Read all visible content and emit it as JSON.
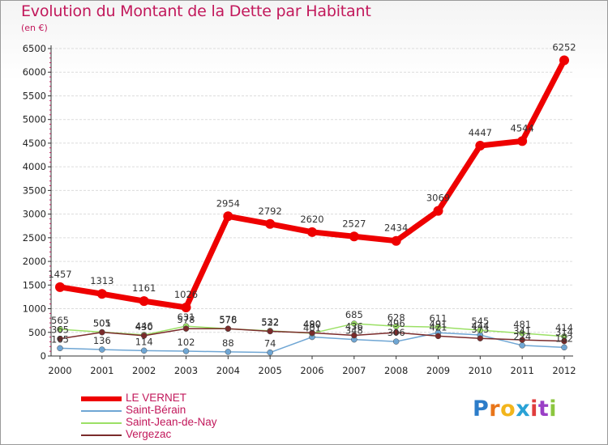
{
  "title": "Evolution du Montant de la Dette par Habitant",
  "unit_label": "(en €)",
  "logo": {
    "letters": [
      "P",
      "r",
      "o",
      "x",
      "i",
      "t",
      "i"
    ],
    "colors": [
      "#2c7cc9",
      "#e8751a",
      "#f2b51c",
      "#2aa2d6",
      "#e03d3d",
      "#9a3fc6",
      "#8cc63f"
    ]
  },
  "chart_data": {
    "type": "line",
    "title": "Evolution du Montant de la Dette par Habitant",
    "xlabel": "",
    "ylabel": "(en €)",
    "ylim": [
      0,
      6500
    ],
    "yticks": [
      0,
      500,
      1000,
      1500,
      2000,
      2500,
      3000,
      3500,
      4000,
      4500,
      5000,
      5500,
      6000,
      6500
    ],
    "x": [
      "2000",
      "2001",
      "2002",
      "2003",
      "2004",
      "2005",
      "2006",
      "2007",
      "2008",
      "2009",
      "2010",
      "2011",
      "2012"
    ],
    "series": [
      {
        "name": "LE VERNET",
        "color": "#ee0000",
        "width": 7,
        "marker": 6,
        "show_labels": true,
        "values": [
          1457,
          1313,
          1161,
          1026,
          2954,
          2792,
          2620,
          2527,
          2434,
          3069,
          4447,
          4544,
          6252
        ]
      },
      {
        "name": "Saint-Bérain",
        "color": "#6fa6d4",
        "width": 1.5,
        "marker": 3.5,
        "show_labels": true,
        "values": [
          165,
          136,
          114,
          102,
          88,
          74,
          401,
          348,
          306,
          491,
          444,
          224,
          182
        ]
      },
      {
        "name": "Saint-Jean-de-Nay",
        "color": "#9be065",
        "width": 1.5,
        "marker": 3.5,
        "show_labels": true,
        "values": [
          565,
          505,
          446,
          631,
          576,
          532,
          480,
          685,
          628,
          611,
          545,
          481,
          414
        ]
      },
      {
        "name": "Vergezac",
        "color": "#7a2b2b",
        "width": 1.5,
        "marker": 3.5,
        "show_labels": true,
        "values": [
          365,
          501,
          430,
          578,
          578,
          522,
          490,
          436,
          496,
          421,
          373,
          341,
          314
        ]
      }
    ]
  }
}
